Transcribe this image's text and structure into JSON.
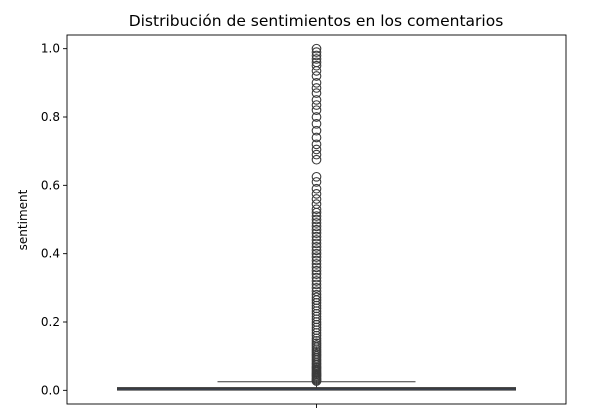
{
  "chart_data": {
    "type": "box",
    "title": "Distribución de sentimientos en los comentarios",
    "xlabel": "",
    "ylabel": "sentiment",
    "ylim": [
      -0.04,
      1.04
    ],
    "yticks": [
      0.0,
      0.2,
      0.4,
      0.6,
      0.8,
      1.0
    ],
    "ytick_labels": [
      "0.0",
      "0.2",
      "0.4",
      "0.6",
      "0.8",
      "1.0"
    ],
    "xtick_labels": [
      ""
    ],
    "grid": false,
    "box": {
      "q1": 0.003,
      "median": 0.005,
      "q3": 0.008,
      "whisker_low": 0.0,
      "whisker_high": 0.025,
      "fill_color": "#3c4a66",
      "line_color": "#3a3a3a"
    },
    "outliers": [
      0.027,
      0.03,
      0.033,
      0.036,
      0.04,
      0.043,
      0.047,
      0.05,
      0.054,
      0.058,
      0.062,
      0.066,
      0.07,
      0.075,
      0.08,
      0.085,
      0.09,
      0.095,
      0.1,
      0.105,
      0.11,
      0.115,
      0.12,
      0.126,
      0.132,
      0.138,
      0.145,
      0.152,
      0.16,
      0.168,
      0.176,
      0.184,
      0.192,
      0.2,
      0.208,
      0.216,
      0.224,
      0.232,
      0.24,
      0.248,
      0.256,
      0.264,
      0.272,
      0.28,
      0.29,
      0.3,
      0.31,
      0.32,
      0.33,
      0.34,
      0.35,
      0.36,
      0.37,
      0.38,
      0.39,
      0.4,
      0.41,
      0.42,
      0.43,
      0.44,
      0.45,
      0.46,
      0.47,
      0.48,
      0.49,
      0.5,
      0.51,
      0.52,
      0.53,
      0.545,
      0.56,
      0.575,
      0.59,
      0.61,
      0.625,
      0.675,
      0.69,
      0.705,
      0.72,
      0.74,
      0.76,
      0.78,
      0.8,
      0.82,
      0.835,
      0.85,
      0.87,
      0.885,
      0.9,
      0.92,
      0.935,
      0.95,
      0.96,
      0.97,
      0.98,
      0.99,
      1.0
    ]
  }
}
